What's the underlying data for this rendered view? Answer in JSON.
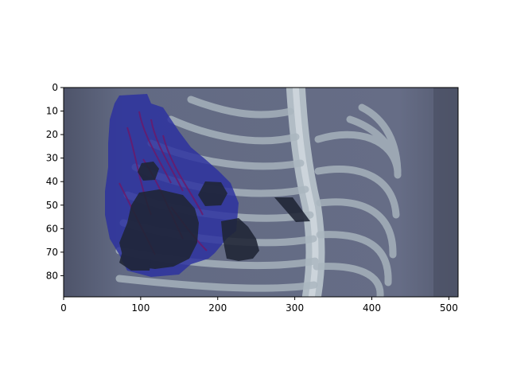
{
  "chart_data": {
    "type": "heatmap",
    "title": "",
    "xlabel": "",
    "ylabel": "",
    "xlim": [
      0,
      512
    ],
    "ylim": [
      89,
      0
    ],
    "xticks": [
      0,
      100,
      200,
      300,
      400,
      500
    ],
    "yticks": [
      0,
      10,
      20,
      30,
      40,
      50,
      60,
      70,
      80
    ],
    "grid": false,
    "legend": "none",
    "image_description_note": "",
    "colors": {
      "background": "#5f6680",
      "bone": "#c8d2d8",
      "overlay_blue": "#2b2f9a",
      "overlay_dark": "#1e2430",
      "vessel": "#6a1a6a"
    }
  }
}
